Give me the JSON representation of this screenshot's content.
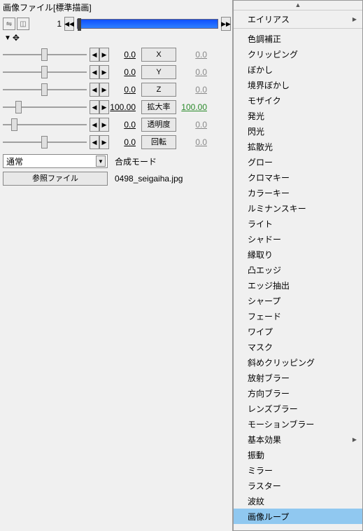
{
  "title": "画像ファイル[標準描画]",
  "timeline": {
    "frame": "1",
    "seek_left": "◀◀",
    "seek_right": "▶▶"
  },
  "toggle": {
    "tri": "▼",
    "icon": "✥"
  },
  "params": [
    {
      "name": "x",
      "thumb": 55,
      "lval": "0.0",
      "label": "X",
      "rval": "0.0",
      "lit": false
    },
    {
      "name": "y",
      "thumb": 55,
      "lval": "0.0",
      "label": "Y",
      "rval": "0.0",
      "lit": false
    },
    {
      "name": "z",
      "thumb": 55,
      "lval": "0.0",
      "label": "Z",
      "rval": "0.0",
      "lit": false
    },
    {
      "name": "scale",
      "thumb": 18,
      "lval": "100.00",
      "label": "拡大率",
      "rval": "100.00",
      "lit": true
    },
    {
      "name": "alpha",
      "thumb": 12,
      "lval": "0.0",
      "label": "透明度",
      "rval": "0.0",
      "lit": false
    },
    {
      "name": "rot",
      "thumb": 55,
      "lval": "0.0",
      "label": "回転",
      "rval": "0.0",
      "lit": false
    }
  ],
  "blend": {
    "value": "通常",
    "label": "合成モード"
  },
  "file": {
    "button": "参照ファイル",
    "name": "0498_seigaiha.jpg"
  },
  "menu": {
    "up": "▲",
    "items": [
      {
        "label": "エイリアス",
        "sub": true,
        "sep": true
      },
      {
        "label": "色調補正"
      },
      {
        "label": "クリッピング"
      },
      {
        "label": "ぼかし"
      },
      {
        "label": "境界ぼかし"
      },
      {
        "label": "モザイク"
      },
      {
        "label": "発光"
      },
      {
        "label": "閃光"
      },
      {
        "label": "拡散光"
      },
      {
        "label": "グロー"
      },
      {
        "label": "クロマキー"
      },
      {
        "label": "カラーキー"
      },
      {
        "label": "ルミナンスキー"
      },
      {
        "label": "ライト"
      },
      {
        "label": "シャドー"
      },
      {
        "label": "縁取り"
      },
      {
        "label": "凸エッジ"
      },
      {
        "label": "エッジ抽出"
      },
      {
        "label": "シャープ"
      },
      {
        "label": "フェード"
      },
      {
        "label": "ワイプ"
      },
      {
        "label": "マスク"
      },
      {
        "label": "斜めクリッピング"
      },
      {
        "label": "放射ブラー"
      },
      {
        "label": "方向ブラー"
      },
      {
        "label": "レンズブラー"
      },
      {
        "label": "モーションブラー"
      },
      {
        "label": "基本効果",
        "sub": true
      },
      {
        "label": "振動"
      },
      {
        "label": "ミラー"
      },
      {
        "label": "ラスター"
      },
      {
        "label": "波紋"
      },
      {
        "label": "画像ループ",
        "hl": true
      }
    ]
  }
}
